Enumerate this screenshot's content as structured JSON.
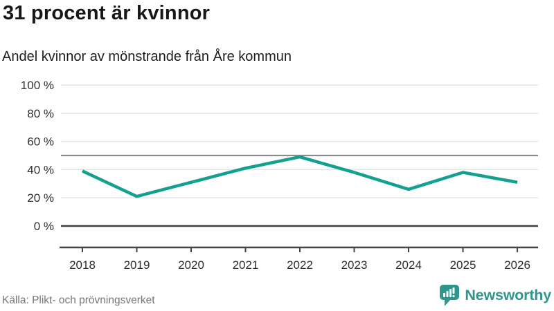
{
  "header": {
    "title": "31 procent är kvinnor",
    "subtitle": "Andel kvinnor av mönstrande från Åre kommun"
  },
  "chart_data": {
    "type": "line",
    "x": [
      "2018",
      "2019",
      "2020",
      "2021",
      "2022",
      "2023",
      "2024",
      "2025",
      "2026"
    ],
    "series": [
      {
        "name": "Andel kvinnor av mönstrande",
        "values": [
          39,
          21,
          31,
          41,
          49,
          38,
          26,
          38,
          31
        ]
      }
    ],
    "unit": "%",
    "title": "31 procent är kvinnor",
    "subtitle": "Andel kvinnor av mönstrande från Åre kommun",
    "xlabel": "",
    "ylabel": "",
    "ylim": [
      0,
      100
    ],
    "yticks": [
      0,
      20,
      40,
      60,
      80,
      100
    ],
    "ytick_labels": [
      "0 %",
      "20 %",
      "40 %",
      "60 %",
      "80 %",
      "100 %"
    ],
    "reference_line": 50,
    "grid": true,
    "legend": "none"
  },
  "footer": {
    "source": "Källa: Plikt- och prövningsverket",
    "brand": "Newsworthy"
  },
  "colors": {
    "accent": "#13a08f",
    "grid": "#e3e3e3",
    "zero_line": "#3f3f3f",
    "ref_line": "#8b8b8b",
    "axis": "#454545",
    "tick_text": "#2e2e2e",
    "muted": "#767676",
    "brand": "#2f958d"
  }
}
